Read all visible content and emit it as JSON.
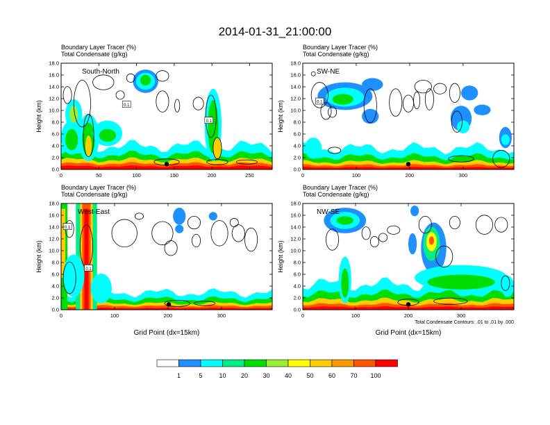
{
  "title": "2014-01-31_21:00:00",
  "panels": [
    {
      "id": "south-north",
      "name": "South-North",
      "header_line1": "Boundary Layer Tracer    (%)",
      "header_line2": "Total Condensate    (g/kg)",
      "xticks": [
        "0",
        "50",
        "100",
        "150",
        "200",
        "250"
      ],
      "yticks": [
        "0.0",
        "2.0",
        "4.0",
        "6.0",
        "8.0",
        "10.0",
        "12.0",
        "14.0",
        "16.0",
        "18.0"
      ],
      "ylabel": "Height (km)",
      "xlabel": "",
      "contour_labels": [
        "0.1",
        "0.1"
      ]
    },
    {
      "id": "sw-ne",
      "name": "SW-NE",
      "header_line1": "Boundary Layer Tracer    (%)",
      "header_line2": "Total Condensate    (g/kg)",
      "xticks": [
        "0",
        "100",
        "200",
        "300"
      ],
      "yticks": [
        "0.0",
        "2.0",
        "4.0",
        "6.0",
        "8.0",
        "10.0",
        "12.0",
        "14.0",
        "16.0",
        "18.0"
      ],
      "ylabel": "Height (km)",
      "xlabel": "",
      "contour_labels": [
        "0.1"
      ]
    },
    {
      "id": "west-east",
      "name": "West-East",
      "header_line1": "Boundary Layer Tracer    (%)",
      "header_line2": "Total Condensate    (g/kg)",
      "xticks": [
        "0",
        "100",
        "200",
        "300"
      ],
      "yticks": [
        "0.0",
        "2.0",
        "4.0",
        "6.0",
        "8.0",
        "10.0",
        "12.0",
        "14.0",
        "16.0",
        "18.0"
      ],
      "ylabel": "Height (km)",
      "xlabel": "Grid Point (dx=15km)",
      "contour_labels": [
        "0.1",
        "0.1"
      ]
    },
    {
      "id": "nw-se",
      "name": "NW-SE",
      "header_line1": "Boundary Layer Tracer    (%)",
      "header_line2": "Total Condensate    (g/kg)",
      "xticks": [
        "0",
        "100",
        "200",
        "300"
      ],
      "yticks": [
        "0.0",
        "2.0",
        "4.0",
        "6.0",
        "8.0",
        "10.0",
        "12.0",
        "14.0",
        "16.0",
        "18.0"
      ],
      "ylabel": "Height (km)",
      "xlabel": "Grid Point (dx=15km)",
      "contour_note": "Total Condensate Contours: .01 to .01 by .000",
      "contour_labels": []
    }
  ],
  "colorbar": {
    "labels": [
      "1",
      "5",
      "10",
      "20",
      "30",
      "40",
      "50",
      "60",
      "70",
      "100"
    ],
    "colors": [
      "#ffffff",
      "#1e90ff",
      "#00ffff",
      "#00ee88",
      "#00dd00",
      "#99ee33",
      "#ffff00",
      "#ffcc00",
      "#ff9900",
      "#ff5500",
      "#ff0000"
    ]
  },
  "chart_data": [
    {
      "type": "heatmap",
      "panel": "South-North",
      "x_range": [
        0,
        280
      ],
      "ylim": [
        0,
        18
      ],
      "xticks": [
        0,
        50,
        100,
        150,
        200,
        250
      ],
      "ylabel": "Height (km)",
      "fields": [
        "Boundary Layer Tracer (%) shaded",
        "Total Condensate (g/kg) contours"
      ]
    },
    {
      "type": "heatmap",
      "panel": "SW-NE",
      "x_range": [
        0,
        395
      ],
      "ylim": [
        0,
        18
      ],
      "xticks": [
        0,
        100,
        200,
        300
      ],
      "ylabel": "Height (km)",
      "fields": [
        "Boundary Layer Tracer (%) shaded",
        "Total Condensate (g/kg) contours"
      ]
    },
    {
      "type": "heatmap",
      "panel": "West-East",
      "x_range": [
        0,
        395
      ],
      "ylim": [
        0,
        18
      ],
      "xticks": [
        0,
        100,
        200,
        300
      ],
      "xlabel": "Grid Point (dx=15km)",
      "ylabel": "Height (km)",
      "fields": [
        "Boundary Layer Tracer (%) shaded",
        "Total Condensate (g/kg) contours"
      ]
    },
    {
      "type": "heatmap",
      "panel": "NW-SE",
      "x_range": [
        0,
        400
      ],
      "ylim": [
        0,
        18
      ],
      "xticks": [
        0,
        100,
        200,
        300
      ],
      "xlabel": "Grid Point (dx=15km)",
      "ylabel": "Height (km)",
      "fields": [
        "Boundary Layer Tracer (%) shaded",
        "Total Condensate (g/kg) contours"
      ]
    }
  ]
}
